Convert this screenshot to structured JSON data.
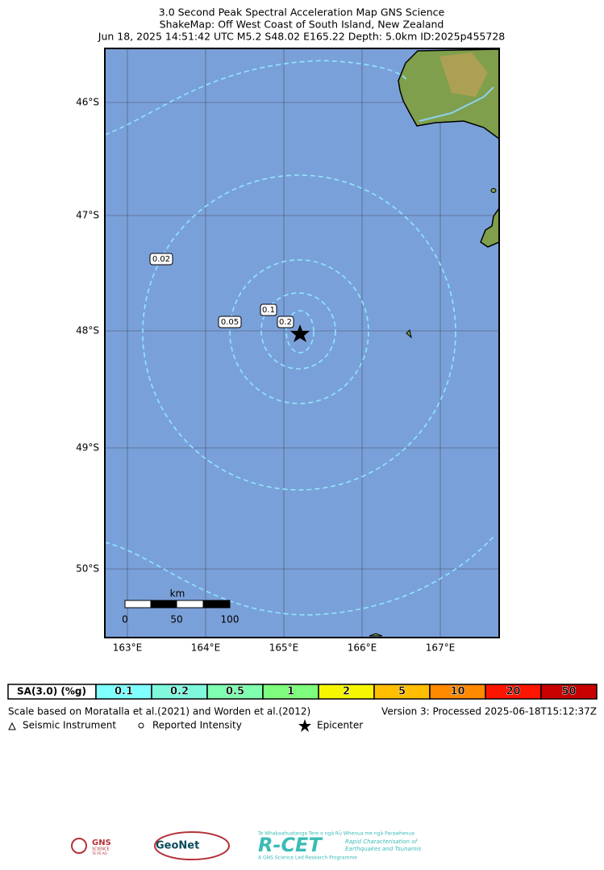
{
  "title": {
    "lines": [
      "3.0 Second Peak Spectral Acceleration Map GNS Science",
      "ShakeMap: Off West Coast of South Island, New Zealand",
      "Jun 18, 2025 14:51:42 UTC M5.2 S48.02 E165.22 Depth: 5.0km ID:2025p455728"
    ]
  },
  "map": {
    "lat_labels": [
      "46°S",
      "47°S",
      "48°S",
      "49°S",
      "50°S"
    ],
    "lon_labels": [
      "163°E",
      "164°E",
      "165°E",
      "166°E",
      "167°E"
    ],
    "contour_labels": [
      "0.02",
      "0.05",
      "0.1",
      "0.2"
    ],
    "scale_bar": {
      "unit": "km",
      "ticks": [
        "0",
        "50",
        "100"
      ]
    }
  },
  "legend": {
    "header": "SA(3.0) (%g)",
    "bins": [
      {
        "label": "0.1",
        "color": "#80ffff"
      },
      {
        "label": "0.2",
        "color": "#7ff8dc"
      },
      {
        "label": "0.5",
        "color": "#80ffb0"
      },
      {
        "label": "1",
        "color": "#7efc7e"
      },
      {
        "label": "2",
        "color": "#f6f600"
      },
      {
        "label": "5",
        "color": "#ffbf00"
      },
      {
        "label": "10",
        "color": "#ff8a00"
      },
      {
        "label": "20",
        "color": "#ff1400"
      },
      {
        "label": "50",
        "color": "#c80000"
      }
    ],
    "note": "Scale based on Moratalla et al.(2021) and Worden et al.(2012)",
    "version": "Version 3: Processed 2025-06-18T15:12:37Z",
    "symbols": [
      "Seismic Instrument",
      "Reported Intensity",
      "Epicenter"
    ]
  },
  "logos": {
    "gns": "GNS",
    "gns_sub": "SCIENCE",
    "gns_maori": "TE PŪ AO",
    "geonet": "GeoNet",
    "rcet": "R-CET",
    "rcet_maori": "Te Whakaahuatanga Tere o ngā Rū Whenua me ngā Parawhenua",
    "rcet_line1": "Rapid Characterisation of",
    "rcet_line2": "Earthquakes and Tsunamis",
    "rcet_sub": "A GNS Science Led Research Programme"
  }
}
